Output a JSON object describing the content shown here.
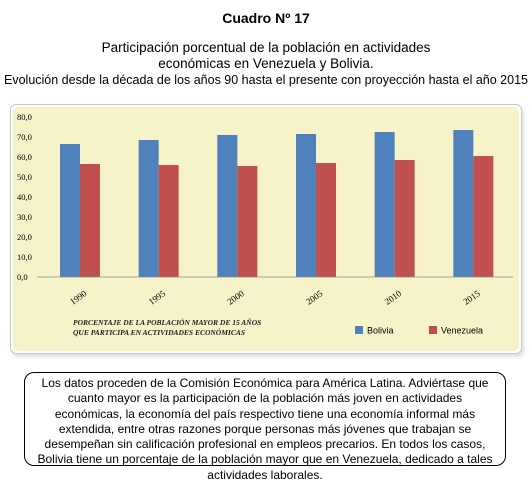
{
  "header": {
    "cuadro": "Cuadro Nº 17",
    "title_line1": "Participación porcentual de la población en actividades",
    "title_line2": "económicas en Venezuela y Bolivia.",
    "subtitle": "Evolución desde la década de los años 90 hasta el presente con proyección hasta el año 2015"
  },
  "chart_data": {
    "type": "bar",
    "categories": [
      "1990",
      "1995",
      "2000",
      "2005",
      "2010",
      "2015"
    ],
    "series": [
      {
        "name": "Bolivia",
        "color": "#4f81bd",
        "values": [
          66.5,
          68.5,
          71.0,
          71.5,
          72.5,
          73.5
        ]
      },
      {
        "name": "Venezuela",
        "color": "#c0504d",
        "values": [
          56.5,
          56.0,
          55.5,
          57.0,
          58.5,
          60.5
        ]
      }
    ],
    "ylim": [
      0,
      80
    ],
    "yticks": [
      "0,0",
      "10,0",
      "20,0",
      "30,0",
      "40,0",
      "50,0",
      "60,0",
      "70,0",
      "80,0"
    ],
    "annotation_line1": "PORCENTAJE DE LA POBLACIÓN MAYOR DE 15 AÑOS",
    "annotation_line2": "QUE PARTICIPA EN ACTIVIDADES ECONÓMICAS",
    "legend_position": "bottom-right",
    "grid": false,
    "plot_background": "#f6f3c8"
  },
  "note": {
    "text": "Los datos proceden de la Comisión Económica para América Latina. Adviértase que cuanto mayor es la participación de la población más joven en actividades económicas, la economía del país respectivo tiene una economía informal más extendida, entre otras razones porque personas más jóvenes que trabajan se desempeñan sin calificación profesional en empleos precarios. En todos los casos, Bolivia tiene un porcentaje de la población mayor que en Venezuela, dedicado a tales actividades laborales."
  }
}
